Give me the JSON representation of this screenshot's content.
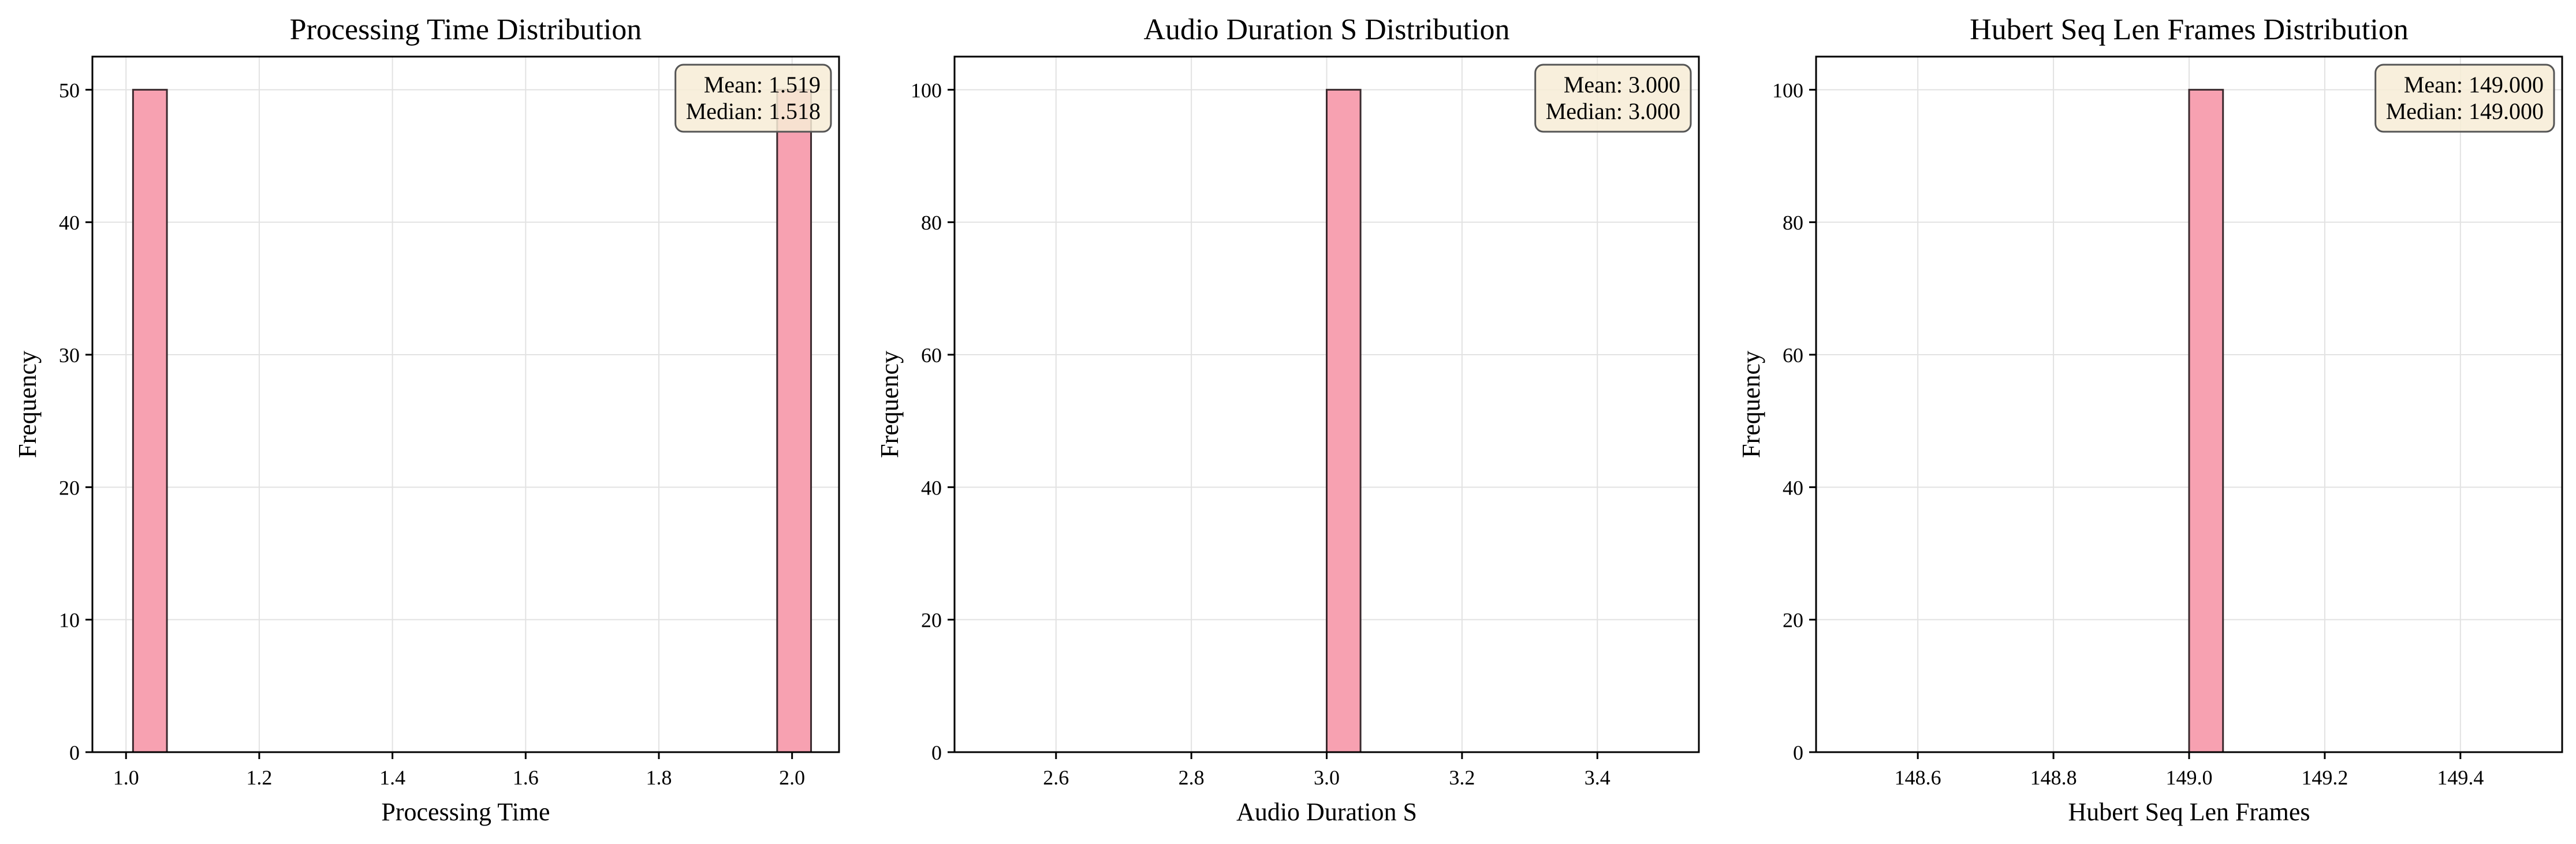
{
  "chart_data": [
    {
      "type": "bar",
      "title": "Processing Time Distribution",
      "xlabel": "Processing Time",
      "ylabel": "Frequency",
      "xlim": [
        0.9495,
        2.0705
      ],
      "ylim": [
        0,
        52.5
      ],
      "xticks": [
        1.0,
        1.2,
        1.4,
        1.6,
        1.8,
        2.0
      ],
      "xtick_labels": [
        "1.0",
        "1.2",
        "1.4",
        "1.6",
        "1.8",
        "2.0"
      ],
      "yticks": [
        0,
        10,
        20,
        30,
        40,
        50
      ],
      "ytick_labels": [
        "0",
        "10",
        "20",
        "30",
        "40",
        "50"
      ],
      "bins": {
        "start": 1.0105,
        "width": 0.0509,
        "counts": [
          50,
          0,
          0,
          0,
          0,
          0,
          0,
          0,
          0,
          0,
          0,
          0,
          0,
          0,
          0,
          0,
          0,
          0,
          0,
          50
        ]
      },
      "stats_lines": [
        "Mean: 1.519",
        "Median: 1.518"
      ],
      "grid": true
    },
    {
      "type": "bar",
      "title": "Audio Duration S Distribution",
      "xlabel": "Audio Duration S",
      "ylabel": "Frequency",
      "xlim": [
        2.45,
        3.55
      ],
      "ylim": [
        0,
        105
      ],
      "xticks": [
        2.6,
        2.8,
        3.0,
        3.2,
        3.4
      ],
      "xtick_labels": [
        "2.6",
        "2.8",
        "3.0",
        "3.2",
        "3.4"
      ],
      "yticks": [
        0,
        20,
        40,
        60,
        80,
        100
      ],
      "ytick_labels": [
        "0",
        "20",
        "40",
        "60",
        "80",
        "100"
      ],
      "bins": {
        "start": 2.5,
        "width": 0.05,
        "counts": [
          0,
          0,
          0,
          0,
          0,
          0,
          0,
          0,
          0,
          0,
          100,
          0,
          0,
          0,
          0,
          0,
          0,
          0,
          0,
          0
        ]
      },
      "stats_lines": [
        "Mean: 3.000",
        "Median: 3.000"
      ],
      "grid": true
    },
    {
      "type": "bar",
      "title": "Hubert Seq Len Frames Distribution",
      "xlabel": "Hubert Seq Len Frames",
      "ylabel": "Frequency",
      "xlim": [
        148.45,
        149.55
      ],
      "ylim": [
        0,
        105
      ],
      "xticks": [
        148.6,
        148.8,
        149.0,
        149.2,
        149.4
      ],
      "xtick_labels": [
        "148.6",
        "148.8",
        "149.0",
        "149.2",
        "149.4"
      ],
      "yticks": [
        0,
        20,
        40,
        60,
        80,
        100
      ],
      "ytick_labels": [
        "0",
        "20",
        "40",
        "60",
        "80",
        "100"
      ],
      "bins": {
        "start": 148.5,
        "width": 0.05,
        "counts": [
          0,
          0,
          0,
          0,
          0,
          0,
          0,
          0,
          0,
          0,
          100,
          0,
          0,
          0,
          0,
          0,
          0,
          0,
          0,
          0
        ]
      },
      "stats_lines": [
        "Mean: 149.000",
        "Median: 149.000"
      ],
      "grid": true
    }
  ],
  "colors": {
    "bar_fill": "#f7a1b1",
    "bar_edge": "#3a2a2e",
    "grid": "#e2e2e2",
    "axis": "#000000",
    "stats_box_fill": "#f7ecd6",
    "stats_box_edge": "#555555"
  }
}
